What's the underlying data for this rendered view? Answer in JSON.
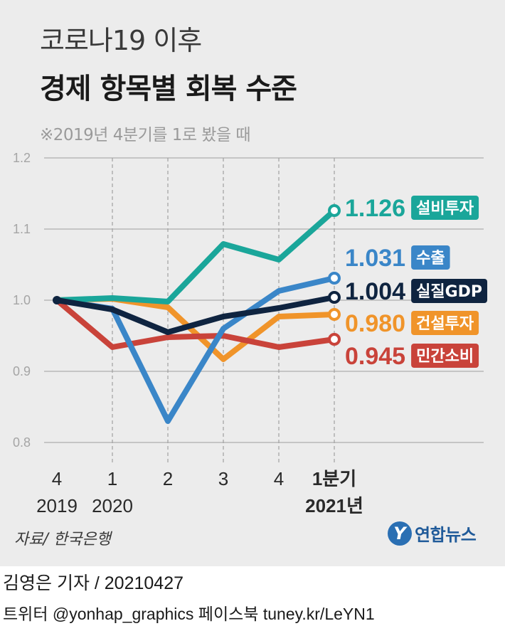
{
  "header": {
    "title_line1": "코로나19 이후",
    "title_line2": "경제 항목별 회복 수준",
    "note": "※2019년 4분기를 1로 봤을 때"
  },
  "footer": {
    "source": "자료/ 한국은행",
    "logo_mark": "Y",
    "logo_text": "연합뉴스",
    "credit": "김영은 기자 / 20210427",
    "social": "트위터 @yonhap_graphics  페이스북 tuney.kr/LeYN1"
  },
  "chart_data": {
    "type": "line",
    "x": [
      "4",
      "1",
      "2",
      "3",
      "4",
      "1분기"
    ],
    "x_years": [
      "2019",
      "2020",
      "",
      "",
      "",
      "2021년"
    ],
    "ylim": [
      0.8,
      1.2
    ],
    "yticks": [
      "1.2",
      "1.1",
      "1.0",
      "0.9",
      "0.8"
    ],
    "grid": true,
    "series": [
      {
        "name": "설비투자",
        "color": "#1aa69a",
        "label": "1.126",
        "values": [
          1.0,
          1.003,
          0.998,
          1.079,
          1.057,
          1.126
        ]
      },
      {
        "name": "수출",
        "color": "#3a86c8",
        "label": "1.031",
        "values": [
          1.0,
          0.988,
          0.83,
          0.96,
          1.013,
          1.031
        ]
      },
      {
        "name": "실질GDP",
        "color": "#0f2440",
        "label": "1.004",
        "values": [
          1.0,
          0.987,
          0.955,
          0.977,
          0.989,
          1.004
        ]
      },
      {
        "name": "건설투자",
        "color": "#f0942a",
        "label": "0.980",
        "values": [
          1.0,
          1.002,
          0.99,
          0.917,
          0.977,
          0.98
        ]
      },
      {
        "name": "민간소비",
        "color": "#c9433a",
        "label": "0.945",
        "values": [
          1.0,
          0.934,
          0.948,
          0.95,
          0.934,
          0.945
        ]
      }
    ]
  }
}
